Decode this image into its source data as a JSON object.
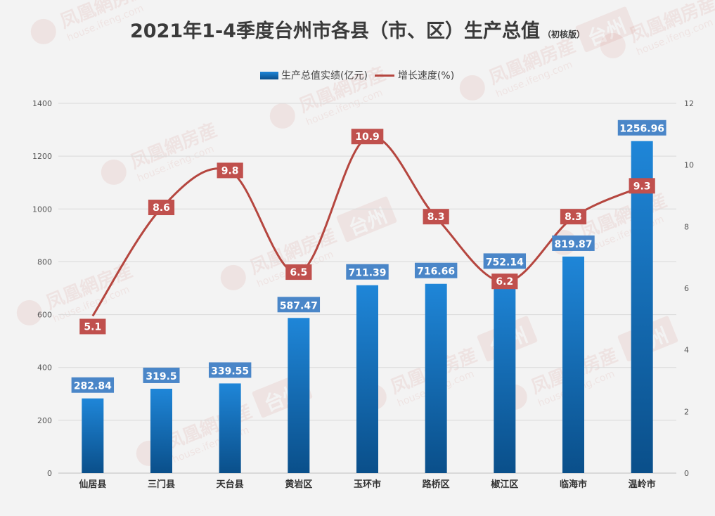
{
  "title": "2021年1-4季度台州市各县（市、区）生产总值",
  "subtitle": "（初核版）",
  "watermark_texts": [
    "凤凰網房産",
    "house.ifeng.com",
    "台州"
  ],
  "colors": {
    "bar_top": "#1f86d8",
    "bar_bottom": "#0a4f8a",
    "bar_label_bg": "#4a86c8",
    "line": "#b5463f",
    "line_label_bg": "#c0504d",
    "grid": "#d9d9d9",
    "background": "#f3f3f3"
  },
  "chart_data": {
    "type": "bar",
    "categories": [
      "仙居县",
      "三门县",
      "天台县",
      "黄岩区",
      "玉环市",
      "路桥区",
      "椒江区",
      "临海市",
      "温岭市"
    ],
    "series": [
      {
        "name": "生产总值实绩(亿元)",
        "type": "bar",
        "axis": "left",
        "values": [
          282.84,
          319.5,
          339.55,
          587.47,
          711.39,
          716.66,
          752.14,
          819.87,
          1256.96
        ],
        "labels": [
          "282.84",
          "319.5",
          "339.55",
          "587.47",
          "711.39",
          "716.66",
          "752.14",
          "819.87",
          "1256.96"
        ]
      },
      {
        "name": "增长速度(%)",
        "type": "line",
        "smooth": true,
        "axis": "right",
        "values": [
          5.1,
          8.6,
          9.8,
          6.5,
          10.9,
          8.3,
          6.2,
          8.3,
          9.3
        ],
        "labels": [
          "5.1",
          "8.6",
          "9.8",
          "6.5",
          "10.9",
          "8.3",
          "6.2",
          "8.3",
          "9.3"
        ]
      }
    ],
    "y_left": {
      "min": 0,
      "max": 1400,
      "ticks": [
        "0",
        "200",
        "400",
        "600",
        "800",
        "1000",
        "1200",
        "1400"
      ]
    },
    "y_right": {
      "min": 0,
      "max": 12,
      "ticks": [
        "0",
        "2",
        "4",
        "6",
        "8",
        "10",
        "12"
      ]
    },
    "grid": true,
    "legend_position": "top"
  }
}
